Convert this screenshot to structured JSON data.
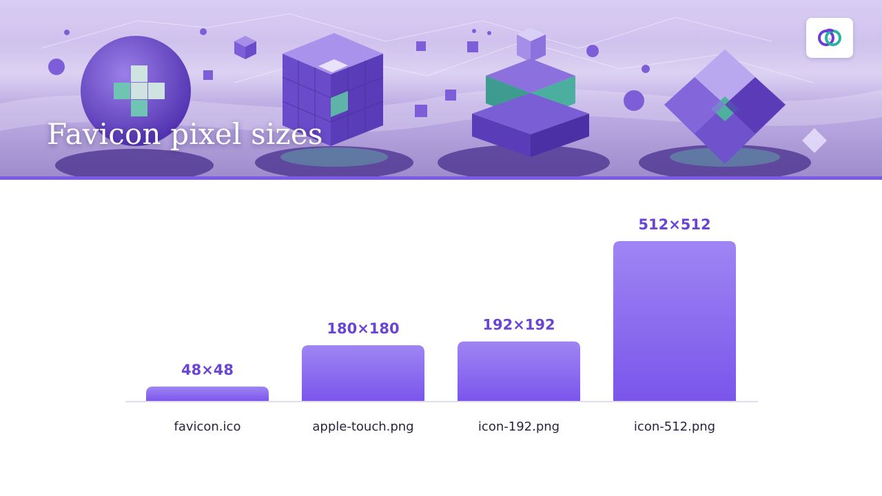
{
  "slide": {
    "title": "Favicon pixel sizes",
    "logo_icon": "linked-rings-logo-icon"
  },
  "colors": {
    "bar_top": "#9f85f3",
    "bar_bottom": "#7a55eb",
    "value_label": "#6a44d4",
    "category_label": "#2a2440",
    "baseline": "#e2dcf2",
    "accent": "#7b5ae6"
  },
  "chart_data": {
    "type": "bar",
    "title": "",
    "xlabel": "",
    "ylabel": "",
    "categories": [
      "favicon.ico",
      "apple-touch.png",
      "icon-192.png",
      "icon-512.png"
    ],
    "values": [
      48,
      180,
      192,
      512
    ],
    "value_labels": [
      "48×48",
      "180×180",
      "192×192",
      "512×512"
    ],
    "ylim": [
      0,
      512
    ],
    "grid": false,
    "legend": "none"
  }
}
